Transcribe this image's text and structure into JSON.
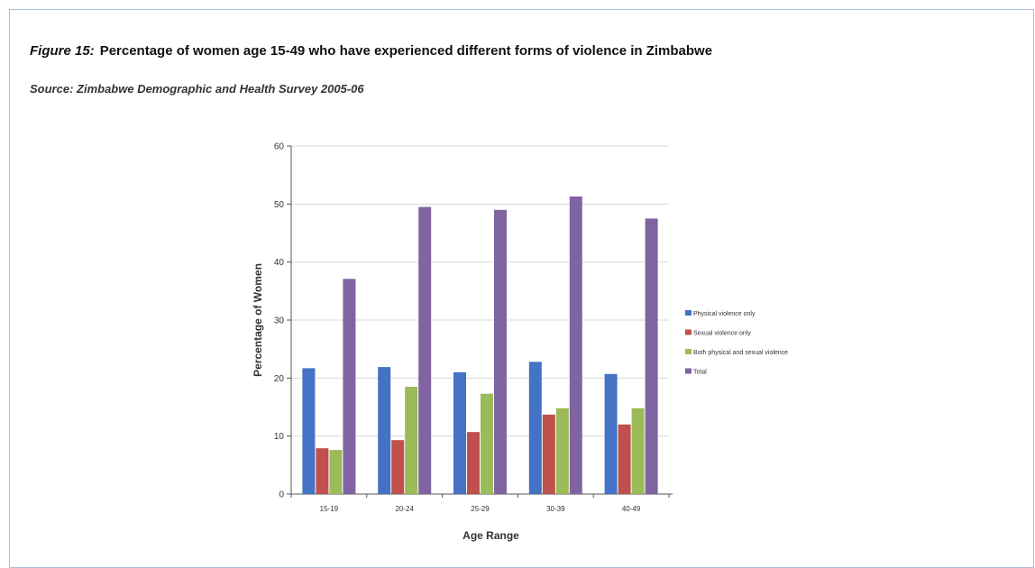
{
  "figure": {
    "label": "Figure 15:",
    "title": "Percentage of women age 15-49 who have experienced different forms of violence in Zimbabwe",
    "source": "Source: Zimbabwe Demographic and Health Survey 2005-06"
  },
  "chart_data": {
    "type": "bar",
    "xlabel": "Age Range",
    "ylabel": "Percentage of Women",
    "ylim": [
      0,
      60
    ],
    "yticks": [
      0,
      10,
      20,
      30,
      40,
      50,
      60
    ],
    "grid": true,
    "legend_position": "right",
    "categories": [
      "15-19",
      "20-24",
      "25-29",
      "30-39",
      "40-49"
    ],
    "series": [
      {
        "name": "Physical violence only",
        "color": "#4472c4",
        "values": [
          21.7,
          21.9,
          21.0,
          22.8,
          20.7
        ]
      },
      {
        "name": "Sexual violence only",
        "color": "#c0504d",
        "values": [
          7.9,
          9.3,
          10.7,
          13.7,
          12.0
        ]
      },
      {
        "name": "Both physical and sexual violence",
        "color": "#9bbb59",
        "values": [
          7.6,
          18.5,
          17.3,
          14.8,
          14.8
        ]
      },
      {
        "name": "Total",
        "color": "#8064a2",
        "values": [
          37.1,
          49.5,
          49.0,
          51.3,
          47.5
        ]
      }
    ]
  }
}
